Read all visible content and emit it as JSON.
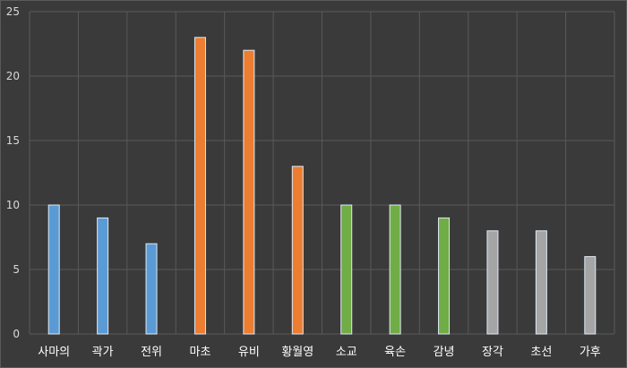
{
  "chart_data": {
    "type": "bar",
    "categories": [
      "사마의",
      "곽가",
      "전위",
      "마초",
      "유비",
      "황월영",
      "소교",
      "육손",
      "감녕",
      "장각",
      "초선",
      "가후"
    ],
    "values": [
      10,
      9,
      7,
      23,
      22,
      13,
      10,
      10,
      9,
      8,
      8,
      6
    ],
    "colors": [
      "#5b9bd5",
      "#5b9bd5",
      "#5b9bd5",
      "#ed7d31",
      "#ed7d31",
      "#ed7d31",
      "#70ad47",
      "#70ad47",
      "#70ad47",
      "#a5a5a5",
      "#a5a5a5",
      "#a5a5a5"
    ],
    "ylim": [
      0,
      25
    ],
    "yticks": [
      0,
      5,
      10,
      15,
      20,
      25
    ],
    "grid": true,
    "background": "#3a3a3a",
    "gridColor": "#595959",
    "title": "",
    "xlabel": "",
    "ylabel": ""
  }
}
